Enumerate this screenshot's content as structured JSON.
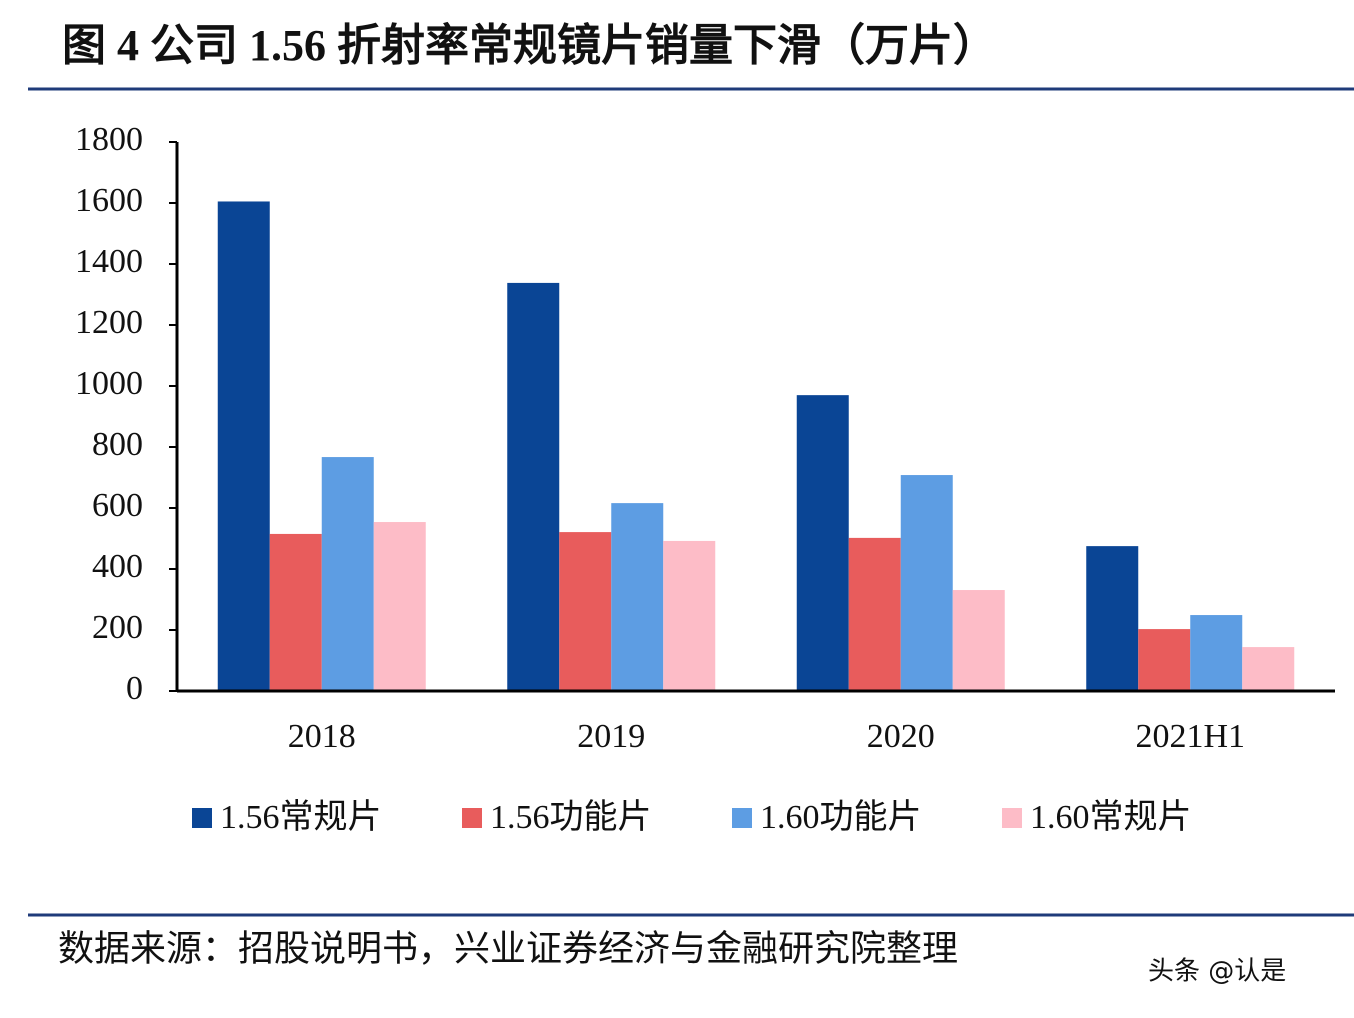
{
  "chart_data": {
    "type": "bar",
    "title": "图 4 公司 1.56 折射率常规镜片销量下滑（万片）",
    "source": "数据来源：招股说明书，兴业证券经济与金融研究院整理",
    "watermark": "头条 @认是",
    "categories": [
      "2018",
      "2019",
      "2020",
      "2021H1"
    ],
    "series": [
      {
        "name": "1.56常规片",
        "color": "#0a4595",
        "values": [
          1605,
          1338,
          970,
          475
        ]
      },
      {
        "name": "1.56功能片",
        "color": "#e85c5c",
        "values": [
          515,
          521,
          502,
          203
        ]
      },
      {
        "name": "1.60功能片",
        "color": "#5d9de3",
        "values": [
          767,
          616,
          708,
          249
        ]
      },
      {
        "name": "1.60常规片",
        "color": "#fdbcc7",
        "values": [
          554,
          492,
          331,
          144
        ]
      }
    ],
    "ylim": [
      0,
      1800
    ],
    "yticks": [
      0,
      200,
      400,
      600,
      800,
      1000,
      1200,
      1400,
      1600,
      1800
    ],
    "grid": false
  }
}
